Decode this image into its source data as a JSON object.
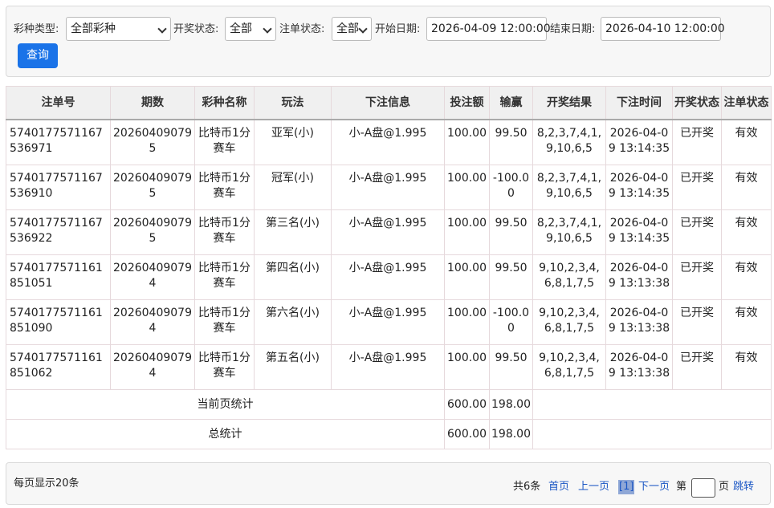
{
  "filters": {
    "lottery_type": {
      "label": "彩种类型:",
      "value": "全部彩种"
    },
    "draw_status": {
      "label": "开奖状态:",
      "value": "全部"
    },
    "bet_status": {
      "label": "注单状态:",
      "value": "全部"
    },
    "start_date": {
      "label": "开始日期:",
      "value": "2026-04-09 12:00:00"
    },
    "end_date": {
      "label": "结束日期:",
      "value": "2026-04-10 12:00:00"
    },
    "query_button": "查询"
  },
  "table": {
    "columns": [
      "注单号",
      "期数",
      "彩种名称",
      "玩法",
      "下注信息",
      "投注额",
      "输赢",
      "开奖结果",
      "下注时间",
      "开奖状态",
      "注单状态"
    ],
    "rows": [
      [
        "5740177571167536971",
        "202604090795",
        "比特币1分赛车",
        "亚军(小)",
        "小-A盘@1.995",
        "100.00",
        "99.50",
        "8,2,3,7,4,1,9,10,6,5",
        "2026-04-09 13:14:35",
        "已开奖",
        "有效"
      ],
      [
        "5740177571167536910",
        "202604090795",
        "比特币1分赛车",
        "冠军(小)",
        "小-A盘@1.995",
        "100.00",
        "-100.00",
        "8,2,3,7,4,1,9,10,6,5",
        "2026-04-09 13:14:35",
        "已开奖",
        "有效"
      ],
      [
        "5740177571167536922",
        "202604090795",
        "比特币1分赛车",
        "第三名(小)",
        "小-A盘@1.995",
        "100.00",
        "99.50",
        "8,2,3,7,4,1,9,10,6,5",
        "2026-04-09 13:14:35",
        "已开奖",
        "有效"
      ],
      [
        "5740177571161851051",
        "202604090794",
        "比特币1分赛车",
        "第四名(小)",
        "小-A盘@1.995",
        "100.00",
        "99.50",
        "9,10,2,3,4,6,8,1,7,5",
        "2026-04-09 13:13:38",
        "已开奖",
        "有效"
      ],
      [
        "5740177571161851090",
        "202604090794",
        "比特币1分赛车",
        "第六名(小)",
        "小-A盘@1.995",
        "100.00",
        "-100.00",
        "9,10,2,3,4,6,8,1,7,5",
        "2026-04-09 13:13:38",
        "已开奖",
        "有效"
      ],
      [
        "5740177571161851062",
        "202604090794",
        "比特币1分赛车",
        "第五名(小)",
        "小-A盘@1.995",
        "100.00",
        "99.50",
        "9,10,2,3,4,6,8,1,7,5",
        "2026-04-09 13:13:38",
        "已开奖",
        "有效"
      ]
    ],
    "summary": [
      {
        "label": "当前页统计",
        "amount": "600.00",
        "win": "198.00"
      },
      {
        "label": "总统计",
        "amount": "600.00",
        "win": "198.00"
      }
    ]
  },
  "footer": {
    "page_size": "每页显示20条",
    "total": "共6条",
    "first": "首页",
    "prev": "上一页",
    "current": "[1]",
    "next": "下一页",
    "page_prefix": "第",
    "page_suffix": "页",
    "jump": "跳转"
  }
}
